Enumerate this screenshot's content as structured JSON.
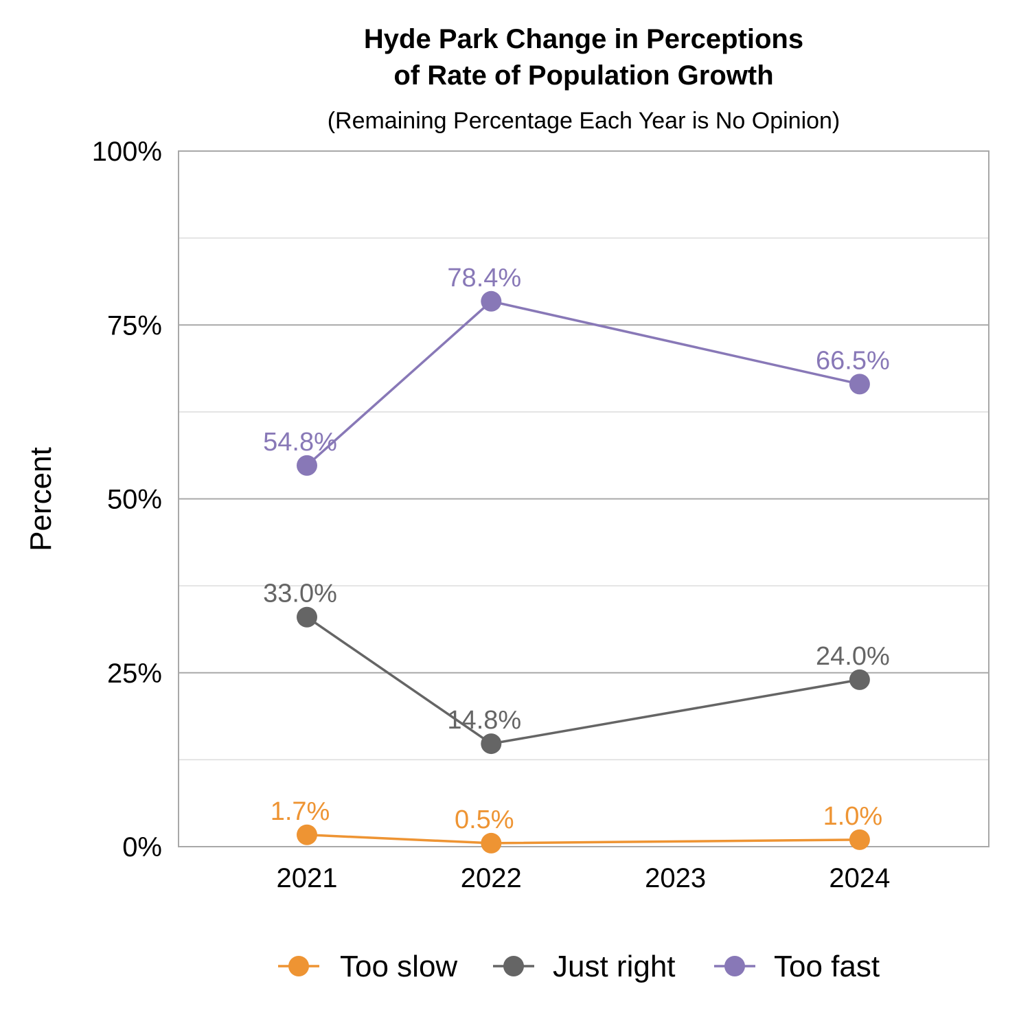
{
  "chart_data": {
    "type": "line",
    "title": "Hyde Park Change in Perceptions of Rate of Population Growth",
    "title_lines": [
      "Hyde Park Change in Perceptions",
      "of Rate of Population Growth"
    ],
    "subtitle": "(Remaining Percentage Each Year is No Opinion)",
    "xlabel": "",
    "ylabel": "Percent",
    "categories": [
      "2021",
      "2022",
      "2023",
      "2024"
    ],
    "ylim": [
      0,
      100
    ],
    "yticks": [
      0,
      25,
      50,
      75,
      100
    ],
    "ytick_labels": [
      "0%",
      "25%",
      "50%",
      "75%",
      "100%"
    ],
    "grid": true,
    "legend_position": "bottom",
    "series": [
      {
        "name": "Too slow",
        "color": "#EE9433",
        "x": [
          "2021",
          "2022",
          "2024"
        ],
        "values": [
          1.7,
          0.5,
          1.0
        ],
        "labels": [
          "1.7%",
          "0.5%",
          "1.0%"
        ]
      },
      {
        "name": "Just right",
        "color": "#656565",
        "x": [
          "2021",
          "2022",
          "2024"
        ],
        "values": [
          33.0,
          14.8,
          24.0
        ],
        "labels": [
          "33.0%",
          "14.8%",
          "24.0%"
        ]
      },
      {
        "name": "Too fast",
        "color": "#8878B7",
        "x": [
          "2021",
          "2022",
          "2024"
        ],
        "values": [
          54.8,
          78.4,
          66.5
        ],
        "labels": [
          "54.8%",
          "78.4%",
          "66.5%"
        ]
      }
    ]
  }
}
